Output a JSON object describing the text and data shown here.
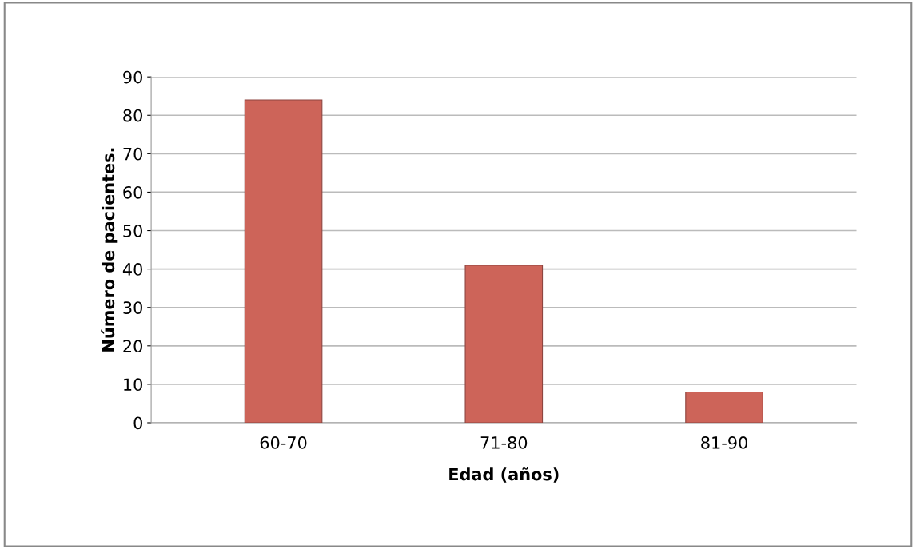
{
  "chart_data": {
    "type": "bar",
    "xlabel": "Edad (años)",
    "ylabel": "Número de pacientes.",
    "categories": [
      "60-70",
      "71-80",
      "81-90"
    ],
    "values": [
      84,
      41,
      8
    ],
    "color": "#cd6459",
    "ylim": [
      0,
      90
    ],
    "yticks": [
      0,
      10,
      20,
      30,
      40,
      50,
      60,
      70,
      80,
      90
    ],
    "grid": "y"
  }
}
